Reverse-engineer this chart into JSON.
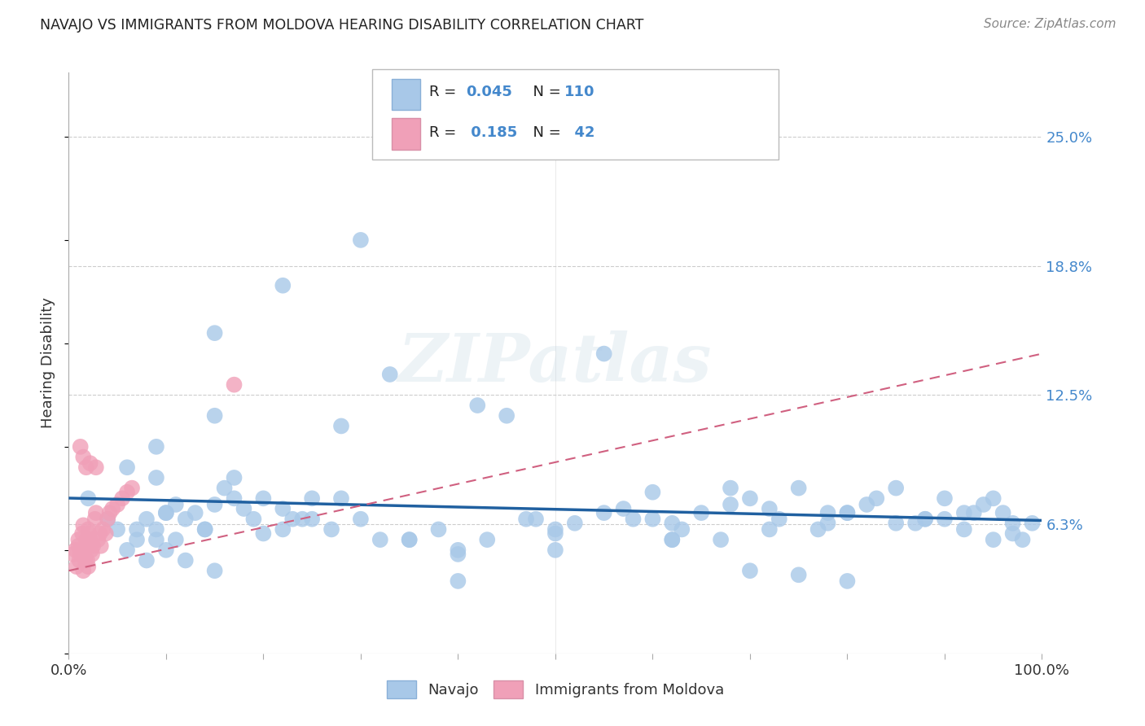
{
  "title": "NAVAJO VS IMMIGRANTS FROM MOLDOVA HEARING DISABILITY CORRELATION CHART",
  "source": "Source: ZipAtlas.com",
  "ylabel": "Hearing Disability",
  "xlim": [
    0,
    1
  ],
  "ylim": [
    0,
    0.281
  ],
  "yticks": [
    0.0625,
    0.125,
    0.1875,
    0.25
  ],
  "ytick_labels": [
    "6.3%",
    "12.5%",
    "18.8%",
    "25.0%"
  ],
  "xticks": [
    0.0,
    0.1,
    0.2,
    0.3,
    0.4,
    0.5,
    0.6,
    0.7,
    0.8,
    0.9,
    1.0
  ],
  "xtick_labels": [
    "0.0%",
    "",
    "",
    "",
    "",
    "",
    "",
    "",
    "",
    "",
    "100.0%"
  ],
  "navajo_R": 0.045,
  "navajo_N": 110,
  "moldova_R": 0.185,
  "moldova_N": 42,
  "navajo_color": "#a8c8e8",
  "moldova_color": "#f0a0b8",
  "navajo_line_color": "#2060a0",
  "moldova_line_color": "#d06080",
  "legend_navajo_label": "Navajo",
  "legend_moldova_label": "Immigrants from Moldova",
  "background_color": "#ffffff",
  "grid_color": "#cccccc",
  "title_color": "#222222",
  "tick_label_color": "#4488cc",
  "navajo_x": [
    0.02,
    0.04,
    0.05,
    0.06,
    0.07,
    0.07,
    0.08,
    0.08,
    0.09,
    0.09,
    0.1,
    0.1,
    0.11,
    0.11,
    0.12,
    0.12,
    0.13,
    0.14,
    0.15,
    0.15,
    0.16,
    0.17,
    0.18,
    0.19,
    0.2,
    0.22,
    0.22,
    0.23,
    0.24,
    0.25,
    0.27,
    0.28,
    0.3,
    0.32,
    0.33,
    0.35,
    0.38,
    0.4,
    0.42,
    0.45,
    0.48,
    0.5,
    0.52,
    0.55,
    0.57,
    0.58,
    0.6,
    0.62,
    0.63,
    0.65,
    0.67,
    0.68,
    0.7,
    0.72,
    0.73,
    0.75,
    0.77,
    0.78,
    0.8,
    0.82,
    0.83,
    0.85,
    0.87,
    0.88,
    0.9,
    0.9,
    0.92,
    0.93,
    0.94,
    0.95,
    0.96,
    0.97,
    0.98,
    0.99,
    0.3,
    0.22,
    0.1,
    0.06,
    0.55,
    0.25,
    0.2,
    0.14,
    0.6,
    0.43,
    0.47,
    0.35,
    0.78,
    0.68,
    0.72,
    0.85,
    0.88,
    0.92,
    0.95,
    0.97,
    0.5,
    0.15,
    0.8,
    0.62,
    0.4,
    0.09,
    0.17,
    0.28,
    0.7,
    0.75,
    0.5,
    0.15,
    0.8,
    0.62,
    0.4,
    0.09
  ],
  "navajo_y": [
    0.075,
    0.065,
    0.06,
    0.05,
    0.055,
    0.06,
    0.065,
    0.045,
    0.06,
    0.055,
    0.068,
    0.05,
    0.072,
    0.055,
    0.065,
    0.045,
    0.068,
    0.06,
    0.155,
    0.115,
    0.08,
    0.075,
    0.07,
    0.065,
    0.075,
    0.07,
    0.06,
    0.065,
    0.065,
    0.065,
    0.06,
    0.11,
    0.065,
    0.055,
    0.135,
    0.055,
    0.06,
    0.05,
    0.12,
    0.115,
    0.065,
    0.06,
    0.063,
    0.068,
    0.07,
    0.065,
    0.065,
    0.055,
    0.06,
    0.068,
    0.055,
    0.072,
    0.075,
    0.07,
    0.065,
    0.08,
    0.06,
    0.063,
    0.068,
    0.072,
    0.075,
    0.08,
    0.063,
    0.065,
    0.065,
    0.075,
    0.06,
    0.068,
    0.072,
    0.075,
    0.068,
    0.063,
    0.055,
    0.063,
    0.2,
    0.178,
    0.068,
    0.09,
    0.145,
    0.075,
    0.058,
    0.06,
    0.078,
    0.055,
    0.065,
    0.055,
    0.068,
    0.08,
    0.06,
    0.063,
    0.065,
    0.068,
    0.055,
    0.058,
    0.05,
    0.04,
    0.035,
    0.055,
    0.035,
    0.1,
    0.085,
    0.075,
    0.04,
    0.038,
    0.058,
    0.072,
    0.068,
    0.063,
    0.048,
    0.085
  ],
  "moldova_x": [
    0.005,
    0.007,
    0.008,
    0.01,
    0.01,
    0.011,
    0.012,
    0.013,
    0.014,
    0.015,
    0.015,
    0.016,
    0.017,
    0.018,
    0.019,
    0.02,
    0.02,
    0.021,
    0.022,
    0.023,
    0.024,
    0.025,
    0.027,
    0.028,
    0.03,
    0.032,
    0.033,
    0.035,
    0.038,
    0.04,
    0.042,
    0.045,
    0.05,
    0.055,
    0.06,
    0.065,
    0.012,
    0.015,
    0.018,
    0.022,
    0.028,
    0.17
  ],
  "moldova_y": [
    0.048,
    0.05,
    0.042,
    0.052,
    0.055,
    0.045,
    0.048,
    0.05,
    0.058,
    0.062,
    0.04,
    0.05,
    0.045,
    0.055,
    0.045,
    0.042,
    0.06,
    0.058,
    0.055,
    0.05,
    0.048,
    0.052,
    0.065,
    0.068,
    0.055,
    0.058,
    0.052,
    0.06,
    0.058,
    0.065,
    0.068,
    0.07,
    0.072,
    0.075,
    0.078,
    0.08,
    0.1,
    0.095,
    0.09,
    0.092,
    0.09,
    0.13
  ]
}
